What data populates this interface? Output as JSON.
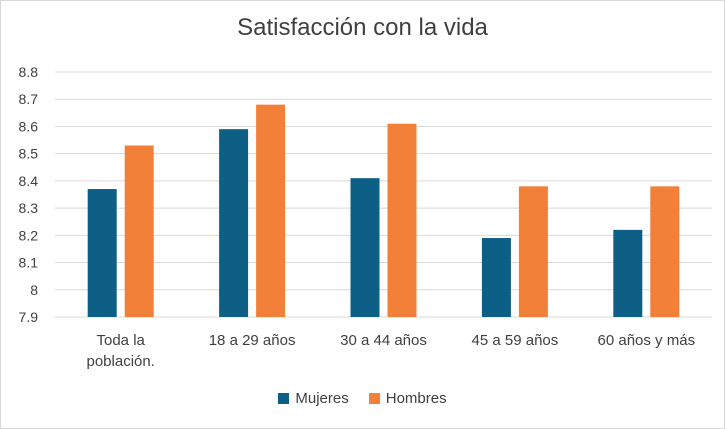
{
  "chart_data": {
    "type": "bar",
    "title": "Satisfacción con la vida",
    "categories": [
      [
        "Toda la",
        "población."
      ],
      [
        "18 a 29 años"
      ],
      [
        "30 a 44 años"
      ],
      [
        "45 a 59 años"
      ],
      [
        "60 años y más"
      ]
    ],
    "series": [
      {
        "name": "Mujeres",
        "color": "#0e5f86",
        "values": [
          8.37,
          8.59,
          8.41,
          8.19,
          8.22
        ]
      },
      {
        "name": "Hombres",
        "color": "#f28038",
        "values": [
          8.53,
          8.68,
          8.61,
          8.38,
          8.38
        ]
      }
    ],
    "ylim": [
      7.9,
      8.8
    ],
    "yticks": [
      "7.9",
      "8",
      "8.1",
      "8.2",
      "8.3",
      "8.4",
      "8.5",
      "8.6",
      "8.7",
      "8.8"
    ],
    "grid": true,
    "legend_position": "bottom"
  }
}
